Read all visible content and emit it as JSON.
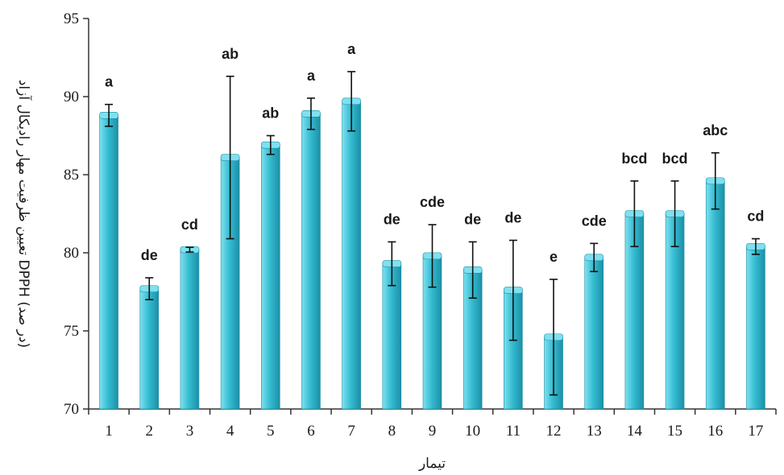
{
  "colors": {
    "bar_light": "#7fe0ef",
    "bar_mid": "#35bdd2",
    "bar_dark": "#1c8fa6",
    "axis": "#333333",
    "error": "#111111"
  },
  "chart_data": {
    "type": "bar",
    "xlabel": "تیمار",
    "ylabel": "تعیین ظرفیت مهار رادیکال آزاد DPPH (در صد)",
    "ylim": [
      70,
      95
    ],
    "yticks": [
      70,
      75,
      80,
      85,
      90,
      95
    ],
    "grid": false,
    "legend": "none",
    "categories": [
      "1",
      "2",
      "3",
      "4",
      "5",
      "6",
      "7",
      "8",
      "9",
      "10",
      "11",
      "12",
      "13",
      "14",
      "15",
      "16",
      "17"
    ],
    "values": [
      88.8,
      77.7,
      80.2,
      86.1,
      86.9,
      88.9,
      89.7,
      79.3,
      79.8,
      78.9,
      77.6,
      74.6,
      79.7,
      82.5,
      82.5,
      84.6,
      80.4
    ],
    "errors": [
      0.7,
      0.7,
      0.15,
      5.2,
      0.6,
      1.0,
      1.9,
      1.4,
      2.0,
      1.8,
      3.2,
      3.7,
      0.9,
      2.1,
      2.1,
      1.8,
      0.5
    ],
    "letters": [
      "a",
      "de",
      "cd",
      "ab",
      "ab",
      "a",
      "a",
      "de",
      "cde",
      "de",
      "de",
      "e",
      "cde",
      "bcd",
      "bcd",
      "abc",
      "cd"
    ]
  }
}
